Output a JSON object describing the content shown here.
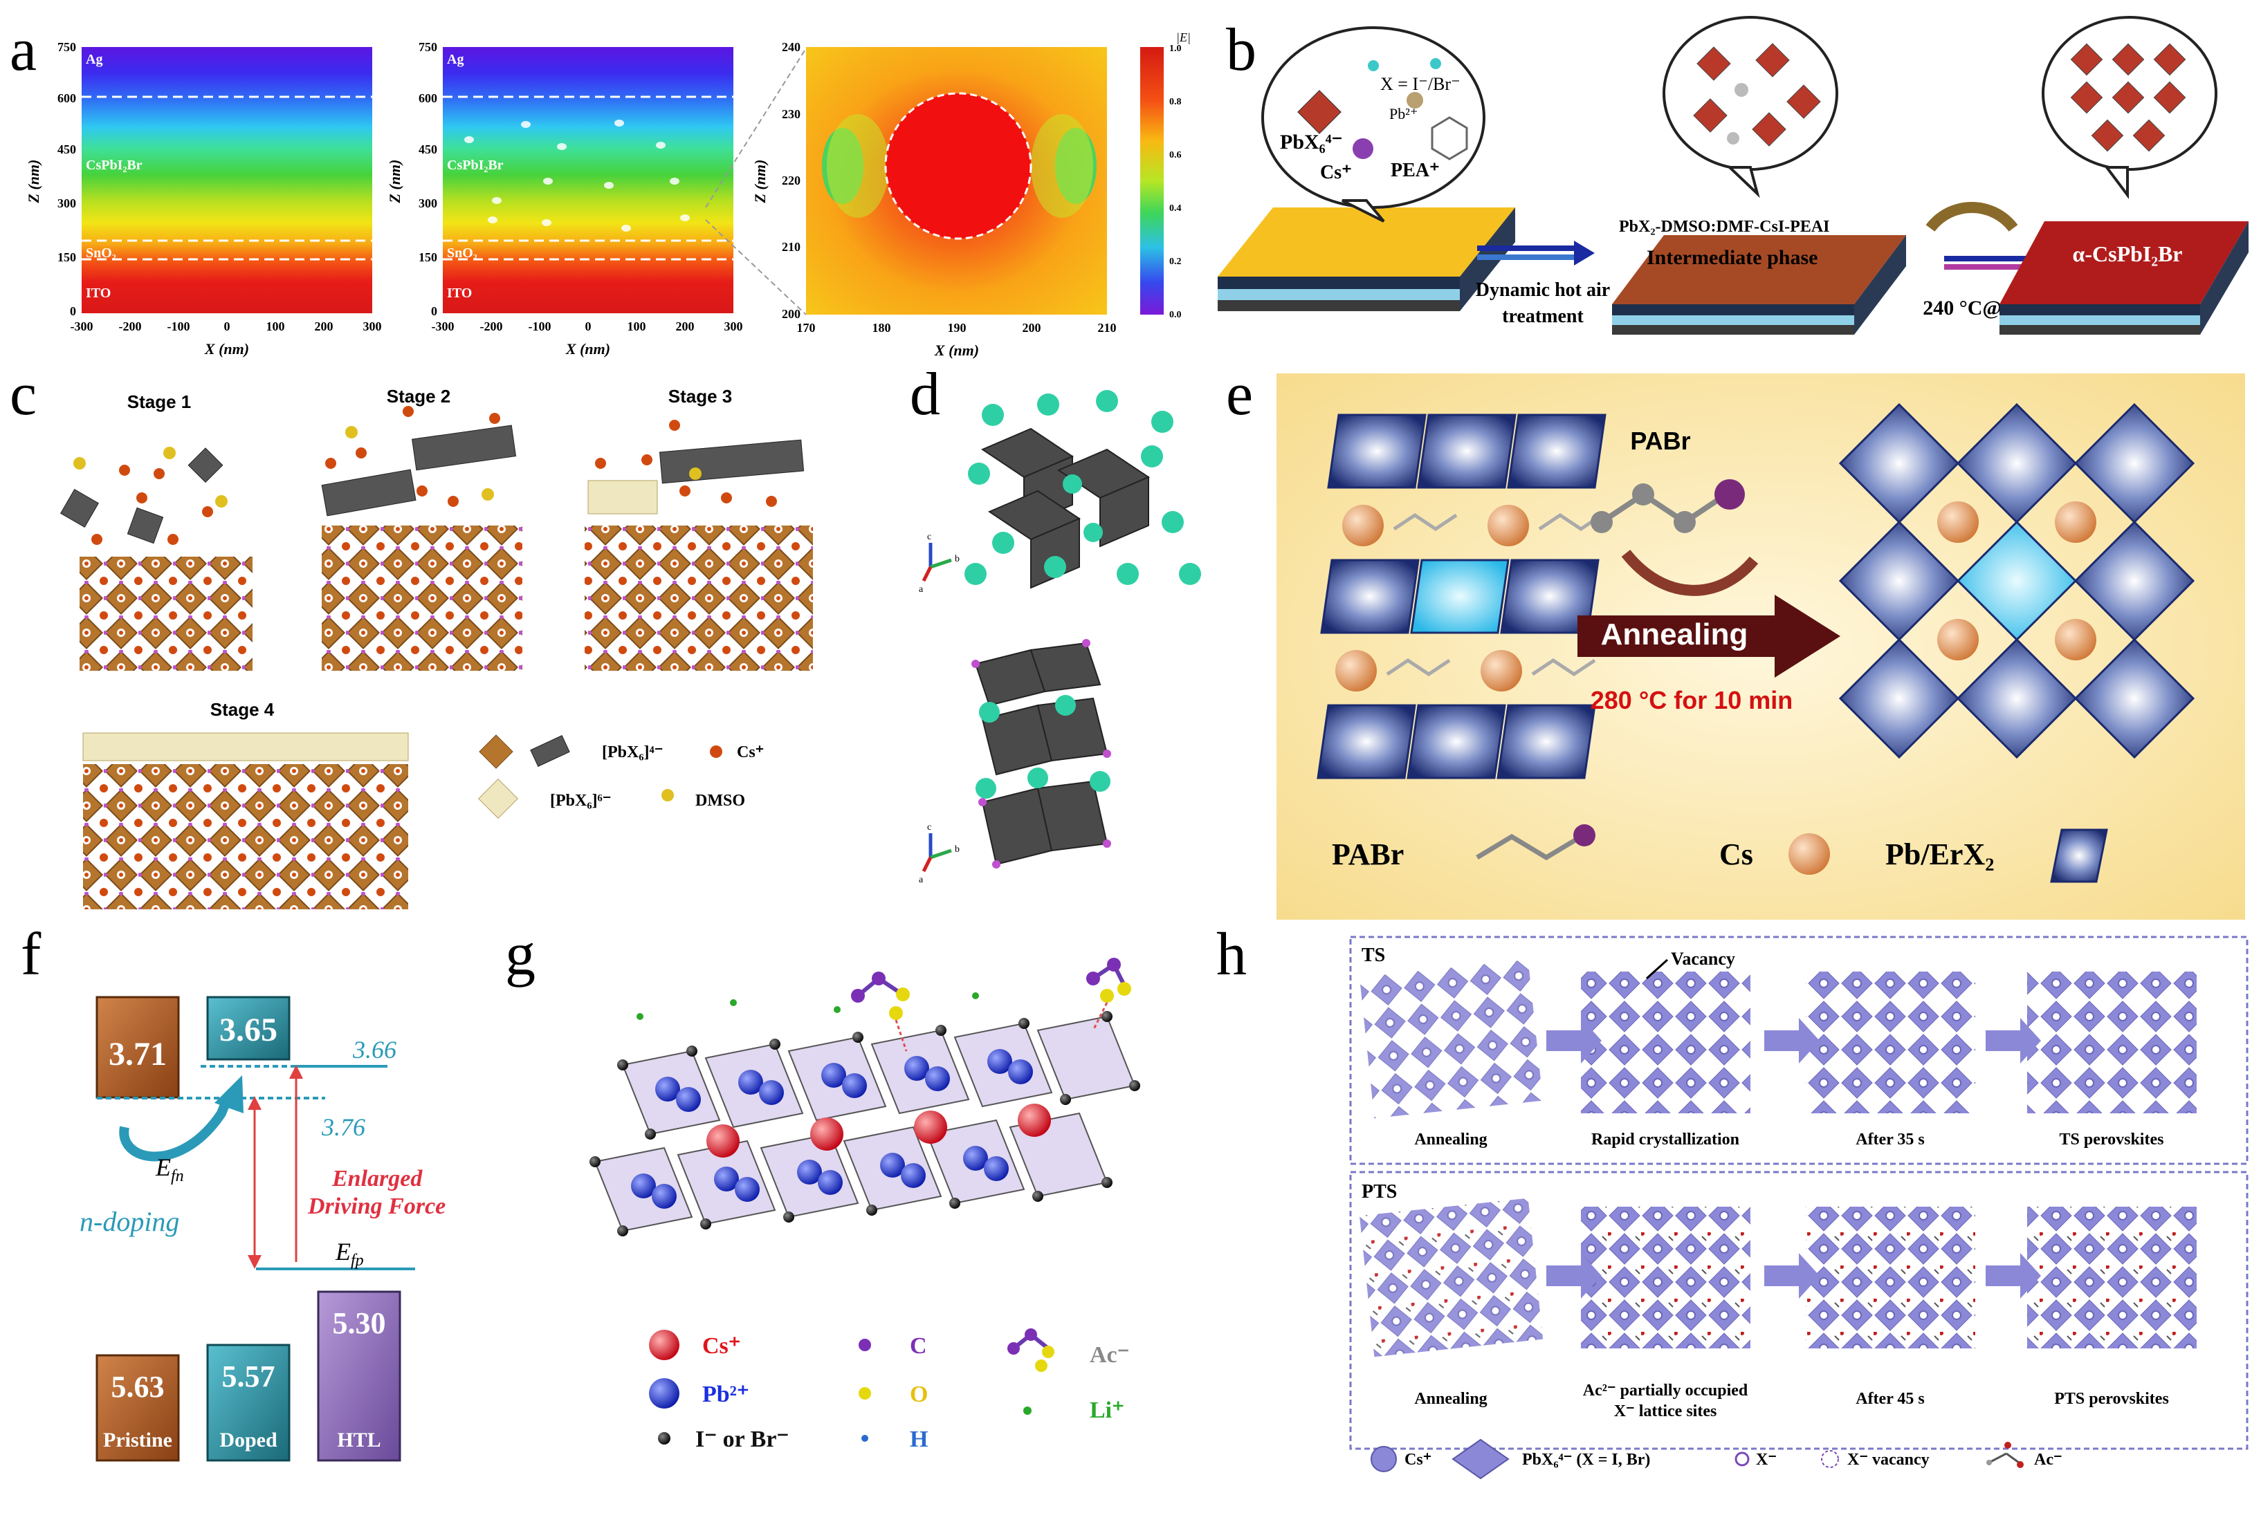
{
  "panel_labels": {
    "a": "a",
    "b": "b",
    "c": "c",
    "d": "d",
    "e": "e",
    "f": "f",
    "g": "g",
    "h": "h"
  },
  "panel_a": {
    "x_label": "X (nm)",
    "z_label": "Z (nm)",
    "layers": [
      "Ag",
      "CsPbI₂Br",
      "SnO₂",
      "ITO"
    ],
    "y_ticks": [
      "750",
      "600",
      "450",
      "300",
      "150",
      "0"
    ],
    "x_ticks": [
      "-300",
      "-200",
      "-100",
      "0",
      "100",
      "200",
      "300"
    ],
    "zoom_y_ticks": [
      "240",
      "230",
      "220",
      "210",
      "200"
    ],
    "zoom_x_ticks": [
      "170",
      "180",
      "190",
      "200",
      "210"
    ],
    "colorbar_title": "|E|",
    "colorbar_ticks": [
      "1.0",
      "0.8",
      "0.6",
      "0.4",
      "0.2",
      "0.0"
    ]
  },
  "panel_b": {
    "bubble1": {
      "x_label": "X = I⁻/Br⁻",
      "pb": "Pb²⁺",
      "pbx": "PbX₆⁴⁻",
      "cs": "Cs⁺",
      "pea": "PEA⁺"
    },
    "step1": "Dynamic hot air",
    "step1b": "treatment",
    "intermediate1": "PbX₂-DMSO:DMF-CsI-PEAI",
    "intermediate2": "Intermediate phase",
    "step2": "240 °C@10 min",
    "product": "α-CsPbI₂Br"
  },
  "panel_c": {
    "stages": [
      "Stage 1",
      "Stage 2",
      "Stage 3",
      "Stage 4"
    ],
    "legend": [
      "[PbX₆]⁴⁻",
      "Cs⁺",
      "[PbX₆]⁶⁻",
      "DMSO"
    ]
  },
  "panel_d": {
    "axes": [
      "c",
      "b",
      "a"
    ]
  },
  "panel_e": {
    "reagent": "PABr",
    "process": "Annealing",
    "condition": "280 °C for 10 min",
    "legend": [
      "PABr",
      "Cs",
      "Pb/ErX₂"
    ]
  },
  "panel_f": {
    "top_boxes": [
      "3.71",
      "3.65"
    ],
    "top_box_right": "3.66",
    "level_376": "3.76",
    "efn": "E",
    "efn_sub": "fn",
    "efp": "E",
    "efp_sub": "fp",
    "n_doping": "n-doping",
    "enlarged1": "Enlarged",
    "enlarged2": "Driving Force",
    "bottom_values": [
      "5.63",
      "5.57",
      "5.30"
    ],
    "bottom_labels": [
      "Pristine",
      "Doped",
      "HTL"
    ]
  },
  "panel_g": {
    "legend": [
      {
        "label": "Cs⁺",
        "color": "#e0141c"
      },
      {
        "label": "Pb²⁺",
        "color": "#1a2ee0"
      },
      {
        "label": "I⁻ or Br⁻",
        "color": "#111111"
      },
      {
        "label": "C",
        "color": "#7a2fb5"
      },
      {
        "label": "O",
        "color": "#e6d80f"
      },
      {
        "label": "H",
        "color": "#2a6ad0"
      },
      {
        "label": "Ac⁻",
        "color": "#888888"
      },
      {
        "label": "Li⁺",
        "color": "#2aa82a"
      }
    ]
  },
  "panel_h": {
    "ts_tag": "TS",
    "pts_tag": "PTS",
    "vacancy": "Vacancy",
    "ts_steps": [
      "Annealing",
      "Rapid crystallization",
      "After 35 s",
      "TS perovskites"
    ],
    "pts_steps": [
      "Annealing",
      "Ac²⁻ partially occupied",
      "X⁻ lattice sites",
      "After 45 s",
      "PTS perovskites"
    ],
    "legend": [
      "Cs⁺",
      "PbX₆⁴⁻ (X = I, Br)",
      "X⁻",
      "X⁻ vacancy",
      "Ac⁻"
    ]
  }
}
